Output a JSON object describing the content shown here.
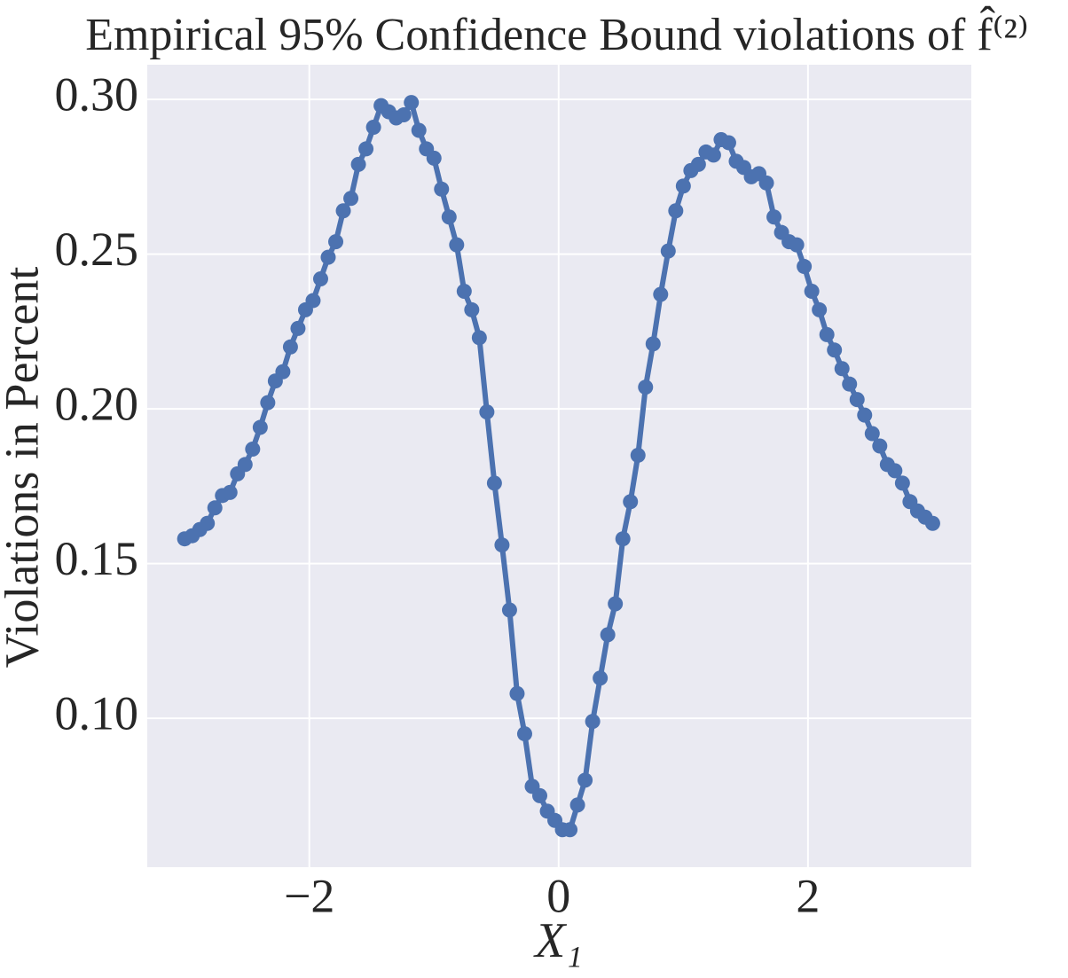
{
  "chart_data": {
    "type": "line",
    "title": "Empirical 95% Confidence Bound violations of f̂⁽²⁾",
    "x_label": "X₁",
    "y_label": "Violations in Percent",
    "x": [
      -3,
      -2.9394,
      -2.8788,
      -2.8182,
      -2.7576,
      -2.697,
      -2.6364,
      -2.5758,
      -2.5152,
      -2.4545,
      -2.3939,
      -2.3333,
      -2.2727,
      -2.2121,
      -2.1515,
      -2.0909,
      -2.0303,
      -1.9697,
      -1.9091,
      -1.8485,
      -1.7879,
      -1.7273,
      -1.6667,
      -1.6061,
      -1.5455,
      -1.4848,
      -1.4242,
      -1.3636,
      -1.303,
      -1.2424,
      -1.1818,
      -1.1212,
      -1.0606,
      -1,
      -0.9394,
      -0.8788,
      -0.8182,
      -0.7576,
      -0.697,
      -0.6364,
      -0.5758,
      -0.5152,
      -0.4545,
      -0.3939,
      -0.3333,
      -0.2727,
      -0.2121,
      -0.1515,
      -0.0909,
      -0.0303,
      0.0303,
      0.0909,
      0.1515,
      0.2121,
      0.2727,
      0.3333,
      0.3939,
      0.4545,
      0.5152,
      0.5758,
      0.6364,
      0.697,
      0.7576,
      0.8182,
      0.8788,
      0.9394,
      1,
      1.0606,
      1.1212,
      1.1818,
      1.2424,
      1.303,
      1.3636,
      1.4242,
      1.4848,
      1.5455,
      1.6061,
      1.6667,
      1.7273,
      1.7879,
      1.8485,
      1.9091,
      1.9697,
      2.0303,
      2.0909,
      2.1515,
      2.2121,
      2.2727,
      2.3333,
      2.3939,
      2.4545,
      2.5152,
      2.5758,
      2.6364,
      2.697,
      2.7576,
      2.8182,
      2.8788,
      2.9394,
      3
    ],
    "series": [
      {
        "color": "#4c72b0",
        "values": [
          0.158,
          0.159,
          0.161,
          0.163,
          0.168,
          0.172,
          0.173,
          0.179,
          0.182,
          0.187,
          0.194,
          0.202,
          0.209,
          0.212,
          0.22,
          0.226,
          0.232,
          0.235,
          0.242,
          0.249,
          0.254,
          0.264,
          0.268,
          0.279,
          0.284,
          0.291,
          0.298,
          0.296,
          0.294,
          0.295,
          0.299,
          0.29,
          0.284,
          0.281,
          0.271,
          0.262,
          0.253,
          0.238,
          0.232,
          0.223,
          0.199,
          0.176,
          0.156,
          0.135,
          0.108,
          0.095,
          0.078,
          0.075,
          0.07,
          0.067,
          0.064,
          0.064,
          0.072,
          0.08,
          0.099,
          0.113,
          0.127,
          0.137,
          0.158,
          0.17,
          0.185,
          0.207,
          0.221,
          0.237,
          0.251,
          0.264,
          0.272,
          0.277,
          0.279,
          0.283,
          0.282,
          0.287,
          0.286,
          0.28,
          0.278,
          0.275,
          0.276,
          0.273,
          0.262,
          0.257,
          0.254,
          0.253,
          0.246,
          0.238,
          0.232,
          0.224,
          0.219,
          0.213,
          0.208,
          0.203,
          0.198,
          0.192,
          0.188,
          0.182,
          0.18,
          0.176,
          0.17,
          0.167,
          0.165,
          0.163
        ]
      }
    ],
    "xlim": [
      -3.3,
      3.31
    ],
    "ylim": [
      0.0519,
      0.3112
    ],
    "xticks": [
      {
        "value": -2,
        "label": "−2"
      },
      0,
      2
    ],
    "yticks": [
      {
        "value": 0.1,
        "label": "0.10"
      },
      0.15,
      {
        "value": 0.2,
        "label": "0.20"
      },
      0.25,
      {
        "value": 0.3,
        "label": "0.30"
      }
    ],
    "grid": true,
    "background": "#eaeaf2"
  }
}
